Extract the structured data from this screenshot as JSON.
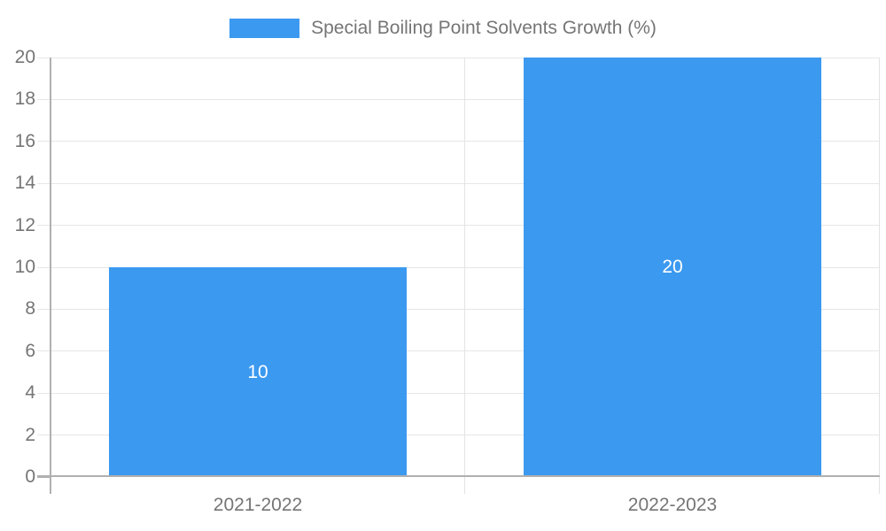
{
  "chart_data": {
    "type": "bar",
    "title": "",
    "legend": {
      "label": "Special Boiling Point Solvents Growth (%)",
      "position": "top-center"
    },
    "categories": [
      "2021-2022",
      "2022-2023"
    ],
    "series": [
      {
        "name": "Special Boiling Point Solvents Growth (%)",
        "values": [
          10,
          20
        ]
      }
    ],
    "ylim": [
      0,
      20
    ],
    "ytick_step": 2,
    "yticks": [
      0,
      2,
      4,
      6,
      8,
      10,
      12,
      14,
      16,
      18,
      20
    ],
    "grid": true,
    "bar_labels_visible": true,
    "colors": {
      "bar": "#3b99f0",
      "axis_text": "#757575",
      "bar_label_text": "#ffffff",
      "gridline": "#e6e6e6",
      "category_gridline": "#e3e3e3",
      "axis_line": "#b0b0b0"
    }
  }
}
